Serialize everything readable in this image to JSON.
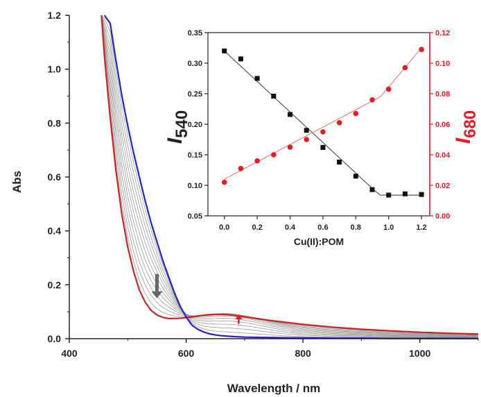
{
  "chart_data": [
    {
      "type": "line",
      "xlabel": "Wavelength / nm",
      "ylabel": "Abs",
      "xlim": [
        400,
        1100
      ],
      "ylim": [
        0,
        1.2
      ],
      "xticks": [
        "400",
        "600",
        "800",
        "1000"
      ],
      "yticks": [
        "0.0",
        "0.2",
        "0.4",
        "0.6",
        "0.8",
        "1.0",
        "1.2"
      ],
      "series_colors": {
        "initial": "#2222cc",
        "final": "#cc2222",
        "intermediate": "#999999"
      },
      "series": [
        {
          "x": [
            460,
            470,
            480,
            490,
            500,
            510,
            520,
            530,
            540,
            550,
            560,
            570,
            580,
            590,
            600,
            610,
            620,
            630,
            640,
            650,
            660,
            680,
            700,
            750,
            800,
            850,
            900,
            950,
            1000,
            1050,
            1100
          ],
          "y": [
            1.2,
            1.17,
            1.03,
            0.9,
            0.79,
            0.69,
            0.6,
            0.51,
            0.43,
            0.36,
            0.29,
            0.23,
            0.17,
            0.12,
            0.08,
            0.05,
            0.035,
            0.025,
            0.018,
            0.014,
            0.011,
            0.008,
            0.006,
            0.004,
            0.003,
            0.002,
            0.002,
            0.001,
            0.001,
            0.001,
            0.001
          ]
        },
        {
          "x": [
            455,
            460,
            470,
            480,
            490,
            500,
            510,
            520,
            530,
            540,
            550,
            560,
            570,
            580,
            590,
            600,
            610,
            620,
            630,
            640,
            650,
            660,
            670,
            680,
            690,
            700,
            720,
            750,
            800,
            850,
            900,
            950,
            1000,
            1050,
            1100
          ],
          "y": [
            1.2,
            1.05,
            0.82,
            0.62,
            0.46,
            0.34,
            0.25,
            0.18,
            0.135,
            0.105,
            0.088,
            0.079,
            0.075,
            0.075,
            0.076,
            0.078,
            0.081,
            0.084,
            0.087,
            0.089,
            0.09,
            0.09,
            0.089,
            0.087,
            0.084,
            0.081,
            0.075,
            0.066,
            0.053,
            0.043,
            0.035,
            0.029,
            0.024,
            0.02,
            0.017
          ]
        }
      ],
      "annotations": [
        {
          "type": "arrow",
          "direction": "down",
          "color": "#666666",
          "x": 550,
          "y_from": 0.24,
          "y_to": 0.15
        },
        {
          "type": "arrow",
          "direction": "up",
          "color": "#e41c24",
          "x": 690,
          "y_from": 0.055,
          "y_to": 0.09
        }
      ]
    },
    {
      "type": "scatter",
      "xlabel": "Cu(II):POM",
      "ylabel": "I540",
      "ylabel_main": "I",
      "ylabel_sub": "540",
      "ylabel_right": "I680",
      "ylabel_right_main": "I",
      "ylabel_right_sub": "680",
      "xlim": [
        -0.1,
        1.25
      ],
      "ylim": [
        0.05,
        0.35
      ],
      "ylim_right": [
        0.0,
        0.12
      ],
      "xticks": [
        "0.0",
        "0.2",
        "0.4",
        "0.6",
        "0.8",
        "1.0",
        "1.2"
      ],
      "yticks": [
        "0.05",
        "0.10",
        "0.15",
        "0.20",
        "0.25",
        "0.30",
        "0.35"
      ],
      "yticks_right": [
        "0.00",
        "0.02",
        "0.04",
        "0.06",
        "0.08",
        "0.10",
        "0.12"
      ],
      "series": [
        {
          "axis": "left",
          "marker": "square",
          "color": "#111111",
          "x": [
            0.0,
            0.1,
            0.2,
            0.3,
            0.4,
            0.5,
            0.6,
            0.7,
            0.8,
            0.9,
            1.0,
            1.1,
            1.2
          ],
          "y": [
            0.32,
            0.307,
            0.275,
            0.246,
            0.216,
            0.19,
            0.162,
            0.138,
            0.115,
            0.093,
            0.084,
            0.086,
            0.085
          ]
        },
        {
          "axis": "right",
          "marker": "circle",
          "color": "#e41c24",
          "x": [
            0.0,
            0.1,
            0.2,
            0.3,
            0.4,
            0.5,
            0.6,
            0.7,
            0.8,
            0.9,
            1.0,
            1.1,
            1.2
          ],
          "y": [
            0.022,
            0.031,
            0.036,
            0.04,
            0.045,
            0.05,
            0.055,
            0.061,
            0.067,
            0.076,
            0.083,
            0.097,
            0.109
          ]
        }
      ],
      "fit_lines": [
        {
          "axis": "left",
          "color": "#555555",
          "x": [
            0.0,
            0.92,
            0.95,
            1.2
          ],
          "y": [
            0.32,
            0.09,
            0.084,
            0.084
          ]
        },
        {
          "axis": "right",
          "color": "#f08080",
          "x": [
            0.0,
            0.95,
            1.2
          ],
          "y": [
            0.024,
            0.078,
            0.11
          ]
        }
      ]
    }
  ]
}
